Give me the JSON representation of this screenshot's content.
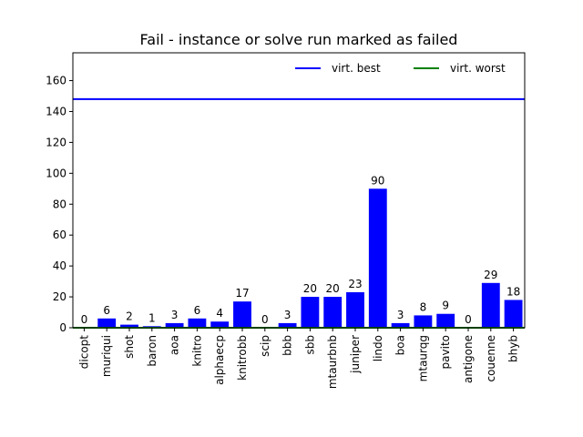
{
  "chart_data": {
    "type": "bar",
    "title": "Fail - instance or solve run marked as failed",
    "categories": [
      "dicopt",
      "muriqui",
      "shot",
      "baron",
      "aoa",
      "knitro",
      "alphaecp",
      "knitrobb",
      "scip",
      "bbb",
      "sbb",
      "mtaurbnb",
      "juniper",
      "lindo",
      "boa",
      "mtaurqg",
      "pavito",
      "antigone",
      "couenne",
      "bhyb"
    ],
    "values": [
      0,
      6,
      2,
      1,
      3,
      6,
      4,
      17,
      0,
      3,
      20,
      20,
      23,
      90,
      3,
      8,
      9,
      0,
      29,
      18
    ],
    "data_labels": [
      "0",
      "6",
      "2",
      "1",
      "3",
      "6",
      "4",
      "17",
      "0",
      "3",
      "20",
      "20",
      "23",
      "90",
      "3",
      "8",
      "9",
      "0",
      "29",
      "18"
    ],
    "bar_color": "#0000ff",
    "ylim": [
      0,
      178
    ],
    "yticks": [
      0,
      20,
      40,
      60,
      80,
      100,
      120,
      140,
      160
    ],
    "ytick_labels": [
      "0",
      "20",
      "40",
      "60",
      "80",
      "100",
      "120",
      "140",
      "160"
    ],
    "xlabel": "",
    "ylabel": "",
    "grid": false,
    "reference_lines": [
      {
        "name": "virt. best",
        "value": 148,
        "color": "#0000ff"
      },
      {
        "name": "virt. worst",
        "value": 0,
        "color": "#008000"
      }
    ],
    "legend": {
      "placement": "top-right",
      "entries": [
        "virt. best",
        "virt. worst"
      ]
    }
  }
}
